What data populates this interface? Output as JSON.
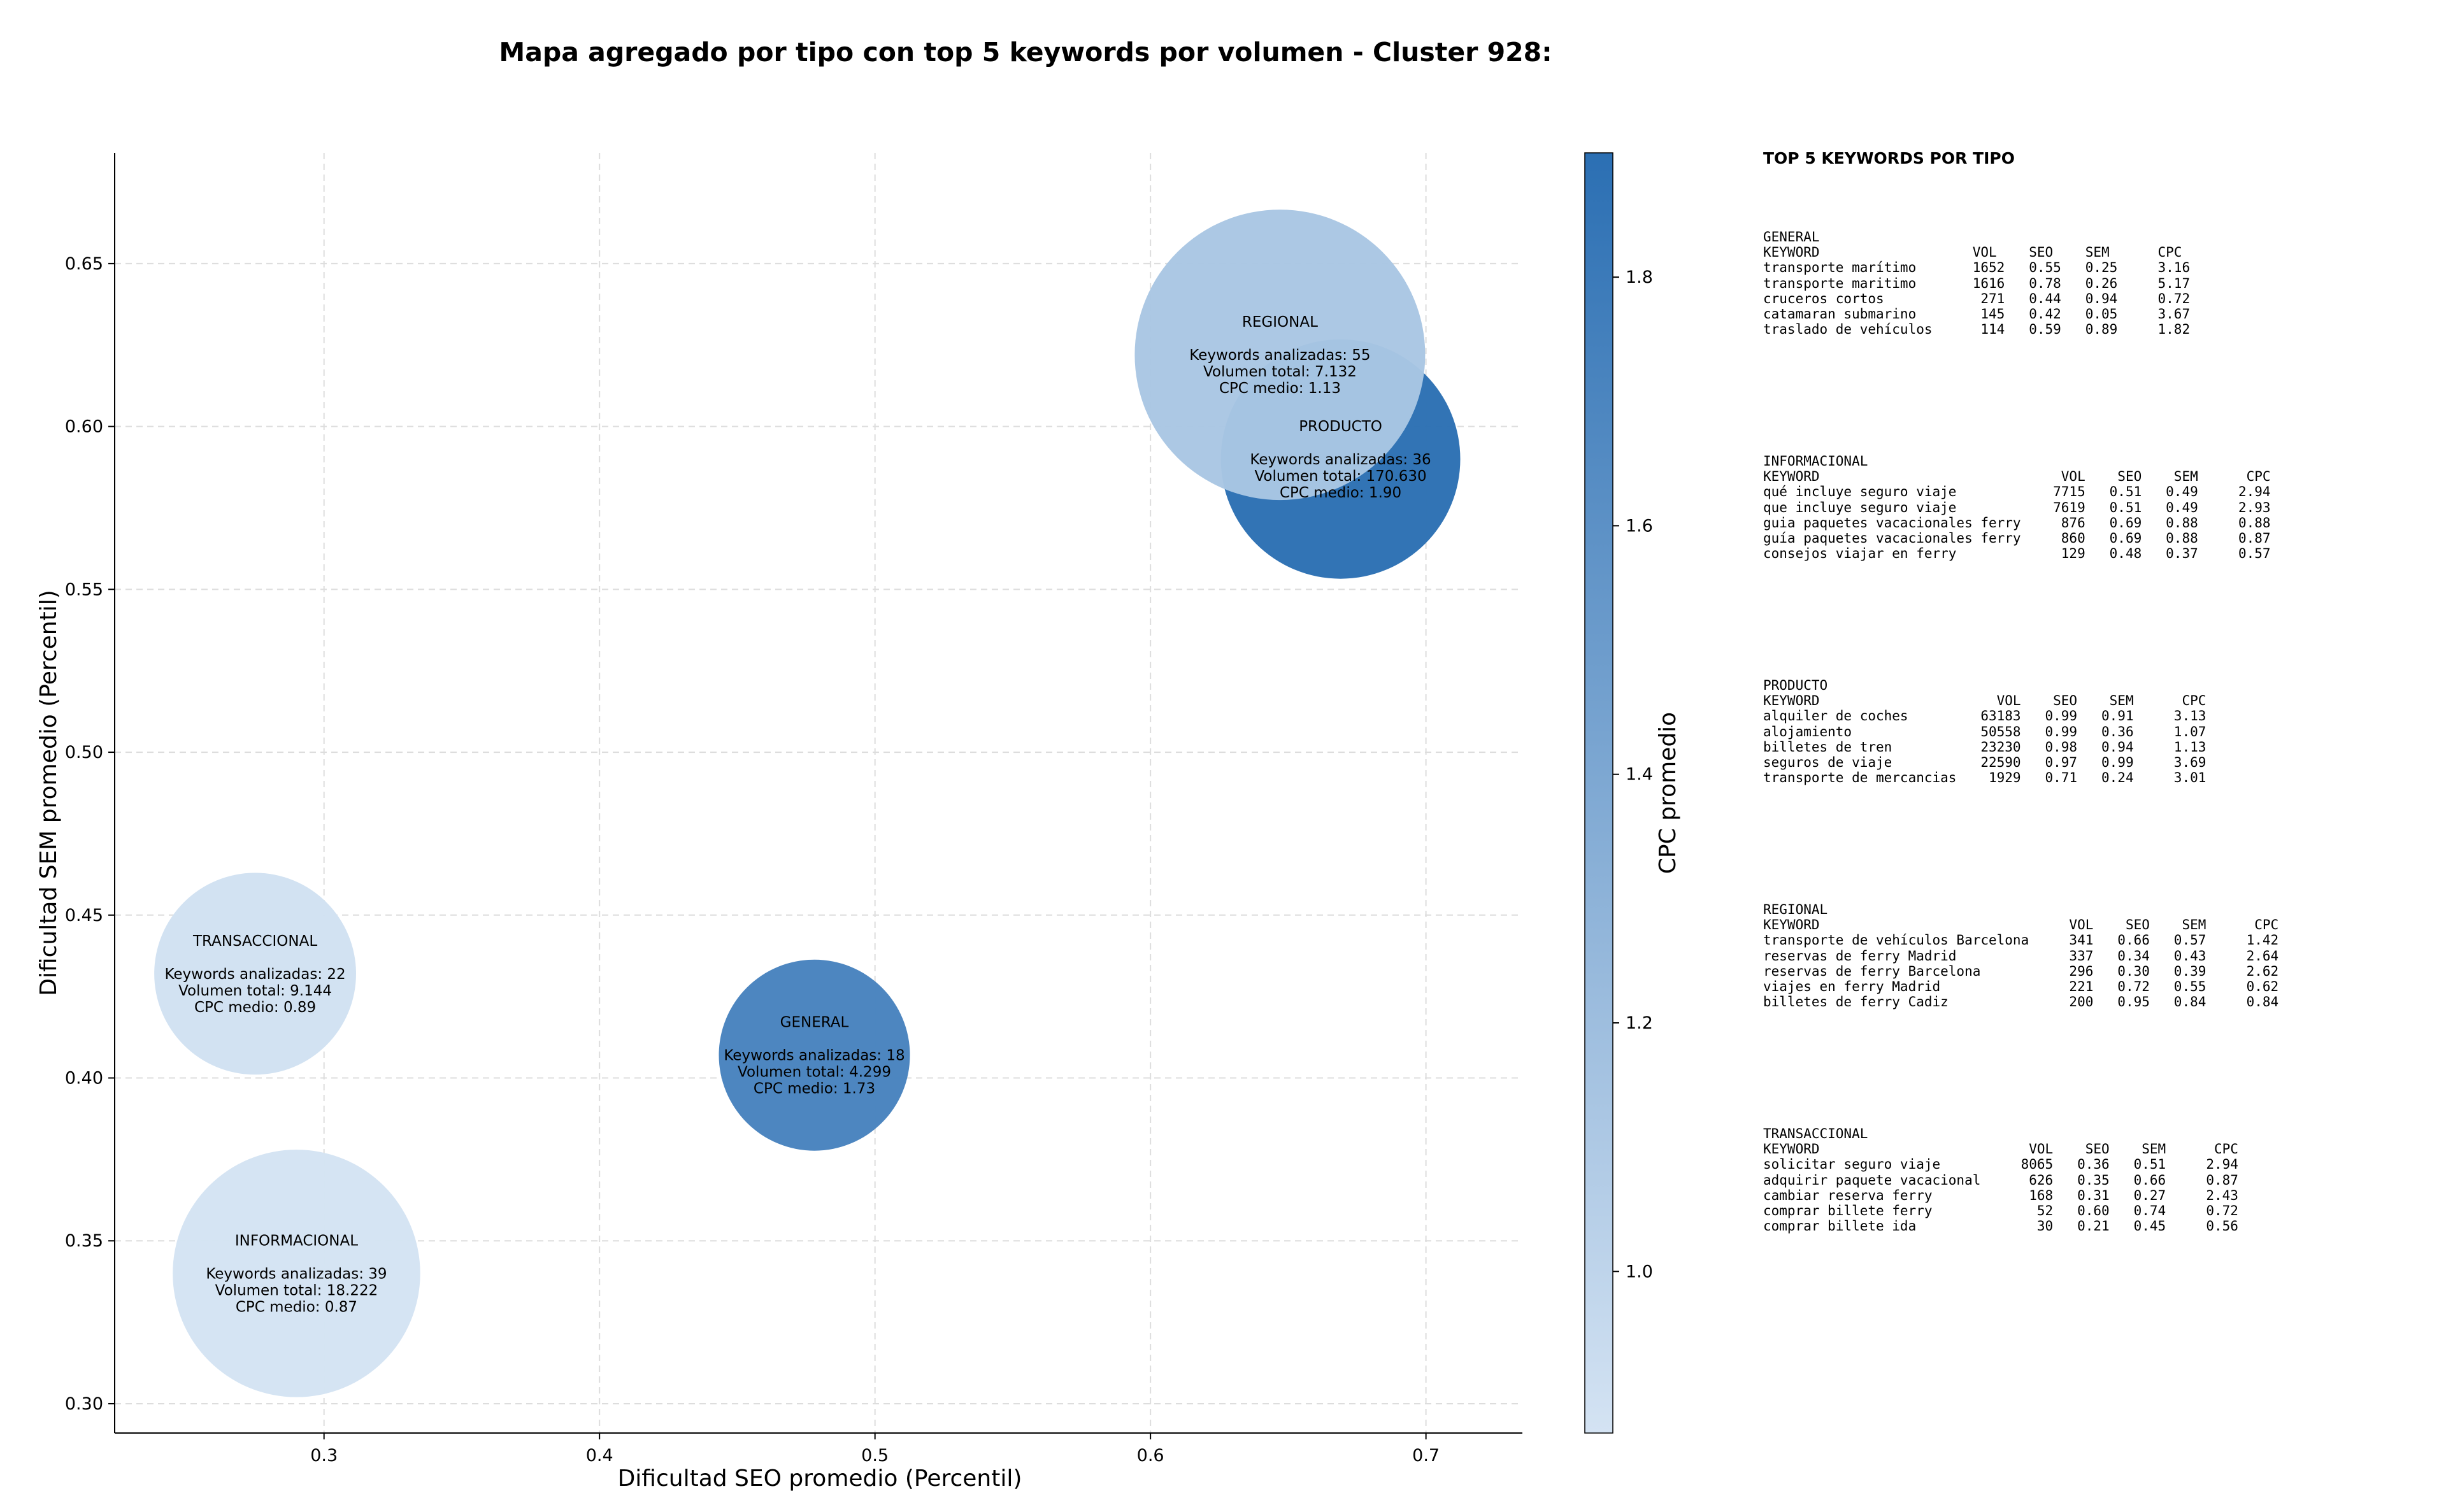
{
  "title": "Mapa agregado por tipo con top 5 keywords por volumen - Cluster 928:",
  "chart_data": {
    "type": "scatter",
    "title": "Mapa agregado por tipo con top 5 keywords por volumen - Cluster 928:",
    "xlabel": "Dificultad SEO promedio (Percentil)",
    "ylabel": "Dificultad SEM promedio (Percentil)",
    "xlim": [
      0.224,
      0.735
    ],
    "ylim": [
      0.291,
      0.684
    ],
    "xticks": [
      0.3,
      0.4,
      0.5,
      0.6,
      0.7
    ],
    "xtick_labels": [
      "0.3",
      "0.4",
      "0.5",
      "0.6",
      "0.7"
    ],
    "yticks": [
      0.3,
      0.35,
      0.4,
      0.45,
      0.5,
      0.55,
      0.6,
      0.65
    ],
    "ytick_labels": [
      "0.30",
      "0.35",
      "0.40",
      "0.45",
      "0.50",
      "0.55",
      "0.60",
      "0.65"
    ],
    "grid": true,
    "colorbar": {
      "label": "CPC promedio",
      "range": [
        0.87,
        1.9
      ],
      "ticks": [
        1.0,
        1.2,
        1.4,
        1.6,
        1.8
      ],
      "tick_labels": [
        "1.0",
        "1.2",
        "1.4",
        "1.6",
        "1.8"
      ],
      "color_low": "#d4e3f3",
      "color_high": "#2b6fb3"
    },
    "size_legend": "Keywords analizadas",
    "points": [
      {
        "name": "PRODUCTO",
        "x": 0.669,
        "y": 0.59,
        "keywords": 36,
        "cpc": 1.9,
        "lines": [
          "PRODUCTO",
          "",
          "Keywords analizadas: 36",
          "Volumen total: 170.630",
          "CPC medio: 1.90"
        ]
      },
      {
        "name": "REGIONAL",
        "x": 0.647,
        "y": 0.622,
        "keywords": 55,
        "cpc": 1.13,
        "lines": [
          "REGIONAL",
          "",
          "Keywords analizadas: 55",
          "Volumen total: 7.132",
          "CPC medio: 1.13"
        ]
      },
      {
        "name": "TRANSACCIONAL",
        "x": 0.275,
        "y": 0.432,
        "keywords": 22,
        "cpc": 0.89,
        "lines": [
          "TRANSACCIONAL",
          "",
          "Keywords analizadas: 22",
          "Volumen total: 9.144",
          "CPC medio: 0.89"
        ]
      },
      {
        "name": "GENERAL",
        "x": 0.478,
        "y": 0.407,
        "keywords": 18,
        "cpc": 1.73,
        "lines": [
          "GENERAL",
          "",
          "Keywords analizadas: 18",
          "Volumen total: 4.299",
          "CPC medio: 1.73"
        ]
      },
      {
        "name": "INFORMACIONAL",
        "x": 0.29,
        "y": 0.34,
        "keywords": 39,
        "cpc": 0.87,
        "lines": [
          "INFORMACIONAL",
          "",
          "Keywords analizadas: 39",
          "Volumen total: 18.222",
          "CPC medio: 0.87"
        ]
      }
    ]
  },
  "side_panel": {
    "title": "TOP 5 KEYWORDS POR TIPO",
    "blocks": [
      {
        "name": "GENERAL",
        "lines": [
          "GENERAL",
          "KEYWORD                   VOL    SEO    SEM      CPC",
          "transporte marítimo       1652   0.55   0.25     3.16",
          "transporte maritimo       1616   0.78   0.26     5.17",
          "cruceros cortos            271   0.44   0.94     0.72",
          "catamaran submarino        145   0.42   0.05     3.67",
          "traslado de vehículos      114   0.59   0.89     1.82"
        ]
      },
      {
        "name": "INFORMACIONAL",
        "lines": [
          "INFORMACIONAL",
          "KEYWORD                              VOL    SEO    SEM      CPC",
          "qué incluye seguro viaje            7715   0.51   0.49     2.94",
          "que incluye seguro viaje            7619   0.51   0.49     2.93",
          "guia paquetes vacacionales ferry     876   0.69   0.88     0.88",
          "guía paquetes vacacionales ferry     860   0.69   0.88     0.87",
          "consejos viajar en ferry             129   0.48   0.37     0.57"
        ]
      },
      {
        "name": "PRODUCTO",
        "lines": [
          "PRODUCTO",
          "KEYWORD                      VOL    SEO    SEM      CPC",
          "alquiler de coches         63183   0.99   0.91     3.13",
          "alojamiento                50558   0.99   0.36     1.07",
          "billetes de tren           23230   0.98   0.94     1.13",
          "seguros de viaje           22590   0.97   0.99     3.69",
          "transporte de mercancias    1929   0.71   0.24     3.01"
        ]
      },
      {
        "name": "REGIONAL",
        "lines": [
          "REGIONAL",
          "KEYWORD                               VOL    SEO    SEM      CPC",
          "transporte de vehículos Barcelona     341   0.66   0.57     1.42",
          "reservas de ferry Madrid              337   0.34   0.43     2.64",
          "reservas de ferry Barcelona           296   0.30   0.39     2.62",
          "viajes en ferry Madrid                221   0.72   0.55     0.62",
          "billetes de ferry Cadiz               200   0.95   0.84     0.84"
        ]
      },
      {
        "name": "TRANSACCIONAL",
        "lines": [
          "TRANSACCIONAL",
          "KEYWORD                          VOL    SEO    SEM      CPC",
          "solicitar seguro viaje          8065   0.36   0.51     2.94",
          "adquirir paquete vacacional      626   0.35   0.66     0.87",
          "cambiar reserva ferry            168   0.31   0.27     2.43",
          "comprar billete ferry             52   0.60   0.74     0.72",
          "comprar billete ida               30   0.21   0.45     0.56"
        ]
      }
    ]
  }
}
